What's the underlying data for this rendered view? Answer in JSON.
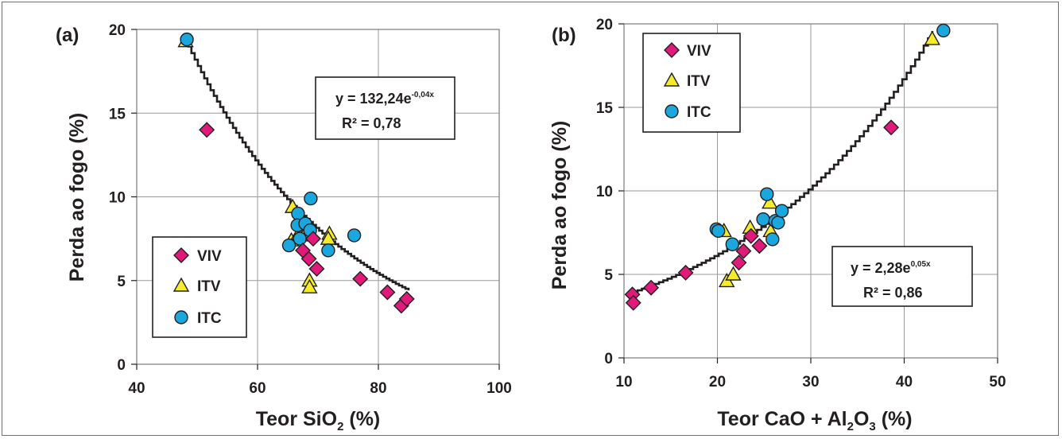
{
  "chart_data": [
    {
      "type": "scatter",
      "panel_label": "(a)",
      "xlabel": {
        "main": "Teor SiO",
        "sub": "2",
        "tail": " (%)"
      },
      "ylabel": "Perda ao fogo (%)",
      "xlim": [
        40,
        100
      ],
      "ylim": [
        0,
        20
      ],
      "xticks": [
        "40",
        "60",
        "80",
        "100"
      ],
      "yticks": [
        "0",
        "5",
        "10",
        "15",
        "20"
      ],
      "grid": true,
      "legend_position": "bottom-left",
      "equation": {
        "text": "y = 132,24e",
        "exp": "-0,04x",
        "r2": "R² = 0,78"
      },
      "trendline": {
        "a": 132.24,
        "b": -0.04,
        "x_range": [
          48,
          85
        ]
      },
      "series": [
        {
          "name": "VIV",
          "marker": "diamond",
          "color": "#e0197a",
          "points": [
            [
              51.6,
              14.0
            ],
            [
              67.5,
              6.8
            ],
            [
              68.5,
              6.3
            ],
            [
              69.2,
              7.5
            ],
            [
              69.8,
              5.7
            ],
            [
              77.0,
              5.1
            ],
            [
              81.5,
              4.3
            ],
            [
              83.8,
              3.5
            ],
            [
              84.7,
              3.9
            ]
          ]
        },
        {
          "name": "ITV",
          "marker": "triangle",
          "color": "#f4ec2a",
          "points": [
            [
              48.1,
              19.3
            ],
            [
              65.8,
              9.4
            ],
            [
              65.6,
              7.4
            ],
            [
              66.8,
              7.8
            ],
            [
              67.7,
              7.7
            ],
            [
              71.9,
              7.8
            ],
            [
              71.7,
              7.5
            ],
            [
              68.6,
              5.0
            ],
            [
              68.6,
              4.6
            ]
          ]
        },
        {
          "name": "ITC",
          "marker": "circle",
          "color": "#1aa7de",
          "points": [
            [
              48.3,
              19.4
            ],
            [
              68.8,
              9.9
            ],
            [
              66.7,
              9.0
            ],
            [
              66.6,
              8.3
            ],
            [
              67.9,
              8.4
            ],
            [
              68.7,
              8.0
            ],
            [
              67.0,
              7.5
            ],
            [
              65.2,
              7.1
            ],
            [
              71.7,
              6.8
            ],
            [
              76.0,
              7.7
            ]
          ]
        }
      ]
    },
    {
      "type": "scatter",
      "panel_label": "(b)",
      "xlabel": {
        "main": "Teor CaO + Al",
        "sub": "2",
        "mid": "O",
        "sub2": "3",
        "tail": " (%)"
      },
      "ylabel": "Perda ao fogo (%)",
      "xlim": [
        10,
        50
      ],
      "ylim": [
        0,
        20
      ],
      "xticks": [
        "10",
        "20",
        "30",
        "40",
        "50"
      ],
      "yticks": [
        "0",
        "5",
        "10",
        "15",
        "20"
      ],
      "grid": true,
      "legend_position": "top-left",
      "equation": {
        "text": "y = 2,28e",
        "exp": "0,05x",
        "r2": "R² = 0,86"
      },
      "trendline": {
        "a": 2.28,
        "b": 0.05,
        "x_range": [
          11,
          43
        ]
      },
      "series": [
        {
          "name": "VIV",
          "marker": "diamond",
          "color": "#e0197a",
          "points": [
            [
              10.9,
              3.8
            ],
            [
              11.0,
              3.3
            ],
            [
              12.9,
              4.2
            ],
            [
              16.6,
              5.1
            ],
            [
              22.3,
              5.7
            ],
            [
              22.8,
              6.4
            ],
            [
              23.6,
              7.3
            ],
            [
              24.5,
              6.7
            ],
            [
              38.6,
              13.8
            ]
          ]
        },
        {
          "name": "ITV",
          "marker": "triangle",
          "color": "#f4ec2a",
          "points": [
            [
              20.7,
              7.6
            ],
            [
              21.0,
              4.6
            ],
            [
              21.7,
              5.0
            ],
            [
              23.5,
              7.8
            ],
            [
              25.6,
              9.3
            ],
            [
              25.7,
              7.6
            ],
            [
              43.0,
              19.1
            ]
          ]
        },
        {
          "name": "ITC",
          "marker": "circle",
          "color": "#1aa7de",
          "points": [
            [
              19.9,
              7.7
            ],
            [
              20.1,
              7.6
            ],
            [
              21.6,
              6.8
            ],
            [
              24.9,
              8.3
            ],
            [
              25.3,
              9.8
            ],
            [
              25.9,
              7.1
            ],
            [
              26.2,
              8.2
            ],
            [
              26.5,
              8.1
            ],
            [
              26.9,
              8.8
            ],
            [
              44.2,
              19.6
            ]
          ]
        }
      ]
    }
  ]
}
